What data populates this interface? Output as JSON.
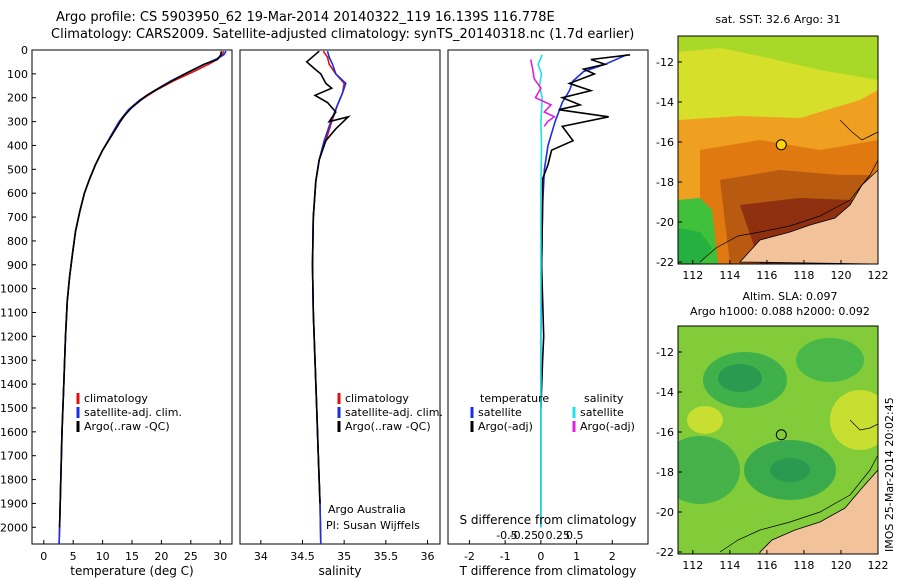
{
  "header": {
    "line1": "Argo profile: CS 5903950_62 19-Mar-2014 20140322_119 16.139S 116.778E",
    "line2": "Climatology: CARS2009. Satellite-adjusted climatology: synTS_20140318.nc (1.7d earlier)"
  },
  "stamp": "IMOS 25-Mar-2014 20:02:45",
  "colors": {
    "climatology": "#e01010",
    "satellite": "#1a2ee8",
    "argo": "#000000",
    "salinity_satellite": "#22e0e8",
    "salinity_argo": "#e020e0",
    "land": "#f2c29a"
  },
  "chart_data": [
    {
      "type": "line",
      "xlabel": "temperature (deg C)",
      "xlim": [
        -2,
        32
      ],
      "ylim": [
        2070,
        0
      ],
      "xticks": [
        0,
        5,
        10,
        15,
        20,
        25,
        30
      ],
      "yticks": [
        0,
        100,
        200,
        300,
        400,
        500,
        600,
        700,
        800,
        900,
        1000,
        1100,
        1200,
        1300,
        1400,
        1500,
        1600,
        1700,
        1800,
        1900,
        2000
      ],
      "legend": [
        "climatology",
        "satellite-adj. clim.",
        "Argo(..raw -QC)"
      ],
      "legend_location": "lower-center",
      "series": [
        {
          "name": "climatology",
          "color": "#e01010",
          "points": [
            [
              30.6,
              5
            ],
            [
              30.3,
              20
            ],
            [
              29.5,
              40
            ],
            [
              28,
              60
            ],
            [
              25.5,
              90
            ],
            [
              22,
              130
            ],
            [
              19,
              170
            ],
            [
              16.5,
              210
            ],
            [
              14.5,
              250
            ],
            [
              13,
              300
            ],
            [
              11.5,
              360
            ],
            [
              10,
              420
            ],
            [
              8.8,
              480
            ],
            [
              7.8,
              540
            ],
            [
              6.9,
              600
            ],
            [
              6.1,
              680
            ],
            [
              5.4,
              760
            ],
            [
              4.9,
              850
            ],
            [
              4.4,
              950
            ],
            [
              4,
              1050
            ],
            [
              3.7,
              1200
            ],
            [
              3.4,
              1400
            ],
            [
              3.1,
              1600
            ],
            [
              2.9,
              1800
            ],
            [
              2.7,
              2000
            ],
            [
              2.6,
              2070
            ]
          ]
        },
        {
          "name": "satellite-adj. clim.",
          "color": "#1a2ee8",
          "points": [
            [
              31,
              5
            ],
            [
              30.6,
              20
            ],
            [
              29.2,
              40
            ],
            [
              27.3,
              60
            ],
            [
              24.8,
              90
            ],
            [
              21.6,
              130
            ],
            [
              18.8,
              170
            ],
            [
              16.3,
              210
            ],
            [
              14.4,
              250
            ],
            [
              12.8,
              300
            ],
            [
              11.4,
              360
            ],
            [
              10,
              420
            ],
            [
              8.8,
              480
            ],
            [
              7.8,
              540
            ],
            [
              6.9,
              600
            ],
            [
              6.1,
              680
            ],
            [
              5.4,
              760
            ],
            [
              4.9,
              850
            ],
            [
              4.4,
              950
            ],
            [
              4,
              1050
            ],
            [
              3.7,
              1200
            ],
            [
              3.4,
              1400
            ],
            [
              3.1,
              1600
            ],
            [
              2.9,
              1800
            ],
            [
              2.7,
              2000
            ],
            [
              2.6,
              2070
            ]
          ]
        },
        {
          "name": "Argo(..raw -QC)",
          "color": "#000000",
          "points": [
            [
              30.2,
              5
            ],
            [
              30.1,
              20
            ],
            [
              29.5,
              40
            ],
            [
              27.2,
              60
            ],
            [
              24,
              100
            ],
            [
              21,
              140
            ],
            [
              17.5,
              190
            ],
            [
              15,
              240
            ],
            [
              13.5,
              280
            ],
            [
              12.5,
              320
            ],
            [
              11,
              380
            ],
            [
              10,
              420
            ],
            [
              8.8,
              480
            ],
            [
              7.8,
              540
            ],
            [
              6.9,
              600
            ],
            [
              6.1,
              680
            ],
            [
              5.4,
              760
            ],
            [
              4.9,
              850
            ],
            [
              4.4,
              950
            ],
            [
              4,
              1050
            ],
            [
              3.7,
              1200
            ],
            [
              3.4,
              1400
            ],
            [
              3.1,
              1600
            ],
            [
              2.9,
              1800
            ],
            [
              2.7,
              2000
            ]
          ]
        }
      ]
    },
    {
      "type": "line",
      "xlabel": "salinity",
      "xlim": [
        33.75,
        36.15
      ],
      "ylim": [
        2070,
        0
      ],
      "xticks": [
        34,
        34.5,
        35,
        35.5,
        36
      ],
      "legend": [
        "climatology",
        "satellite-adj. clim.",
        "Argo(..raw -QC)"
      ],
      "legend_location": "lower-right",
      "annotations": [
        "Argo Australia",
        "PI: Susan Wijffels"
      ],
      "series": [
        {
          "name": "climatology",
          "color": "#e01010",
          "points": [
            [
              34.75,
              5
            ],
            [
              34.8,
              30
            ],
            [
              34.82,
              60
            ],
            [
              34.9,
              100
            ],
            [
              35,
              140
            ],
            [
              34.98,
              180
            ],
            [
              34.92,
              230
            ],
            [
              34.85,
              300
            ],
            [
              34.78,
              380
            ],
            [
              34.7,
              460
            ],
            [
              34.66,
              550
            ],
            [
              34.63,
              700
            ],
            [
              34.62,
              900
            ],
            [
              34.63,
              1100
            ],
            [
              34.65,
              1300
            ],
            [
              34.67,
              1500
            ],
            [
              34.69,
              1700
            ],
            [
              34.71,
              1900
            ],
            [
              34.72,
              2070
            ]
          ]
        },
        {
          "name": "satellite-adj. clim.",
          "color": "#1a2ee8",
          "points": [
            [
              34.8,
              5
            ],
            [
              34.82,
              30
            ],
            [
              34.86,
              60
            ],
            [
              34.9,
              100
            ],
            [
              35.02,
              140
            ],
            [
              34.98,
              180
            ],
            [
              34.92,
              230
            ],
            [
              34.84,
              300
            ],
            [
              34.76,
              380
            ],
            [
              34.7,
              460
            ],
            [
              34.66,
              550
            ],
            [
              34.63,
              700
            ],
            [
              34.62,
              900
            ],
            [
              34.63,
              1100
            ],
            [
              34.65,
              1300
            ],
            [
              34.67,
              1500
            ],
            [
              34.69,
              1700
            ],
            [
              34.71,
              1900
            ],
            [
              34.72,
              2070
            ]
          ]
        },
        {
          "name": "Argo(..raw -QC)",
          "color": "#000000",
          "points": [
            [
              34.7,
              5
            ],
            [
              34.55,
              50
            ],
            [
              34.65,
              80
            ],
            [
              34.72,
              100
            ],
            [
              34.78,
              140
            ],
            [
              34.85,
              160
            ],
            [
              34.65,
              190
            ],
            [
              34.8,
              220
            ],
            [
              34.9,
              260
            ],
            [
              34.82,
              300
            ],
            [
              35.05,
              280
            ],
            [
              34.9,
              330
            ],
            [
              34.78,
              380
            ],
            [
              34.7,
              460
            ],
            [
              34.66,
              550
            ],
            [
              34.63,
              700
            ],
            [
              34.62,
              900
            ],
            [
              34.63,
              1100
            ],
            [
              34.65,
              1300
            ],
            [
              34.67,
              1500
            ],
            [
              34.69,
              1700
            ],
            [
              34.71,
              1900
            ]
          ]
        }
      ]
    },
    {
      "type": "line",
      "xlabel": "T difference from climatology",
      "xlabel_top": "S difference from climatology",
      "xlim": [
        -2.6,
        3
      ],
      "ylim": [
        2070,
        0
      ],
      "xticks": [
        -2,
        -1,
        0,
        1,
        2
      ],
      "top_xticks_values": [
        -0.5,
        -0.25,
        0,
        0.25,
        0.5
      ],
      "top_xtick_labels": [
        "-0.5",
        "-0.25",
        "0",
        "0.25",
        "0.5"
      ],
      "legend": [
        {
          "group": "temperature",
          "items": [
            "satellite",
            "Argo(-adj)"
          ]
        },
        {
          "group": "salinity",
          "items": [
            "satellite",
            "Argo(-adj)"
          ]
        }
      ],
      "series": [
        {
          "name": "satellite",
          "group": "temperature",
          "color": "#1a2ee8",
          "points": [
            [
              2.4,
              20
            ],
            [
              1.8,
              60
            ],
            [
              1.2,
              90
            ],
            [
              0.9,
              130
            ],
            [
              0.8,
              170
            ],
            [
              0.6,
              220
            ],
            [
              0.4,
              300
            ],
            [
              0.2,
              400
            ],
            [
              0.1,
              500
            ],
            [
              0.05,
              650
            ],
            [
              0.02,
              900
            ],
            [
              0,
              1200
            ],
            [
              0,
              1600
            ],
            [
              0,
              2000
            ]
          ]
        },
        {
          "name": "Argo(-adj)",
          "group": "temperature",
          "color": "#000000",
          "points": [
            [
              2.5,
              20
            ],
            [
              1.4,
              40
            ],
            [
              1.8,
              60
            ],
            [
              1.2,
              80
            ],
            [
              1.5,
              100
            ],
            [
              0.8,
              140
            ],
            [
              1.4,
              170
            ],
            [
              0.6,
              200
            ],
            [
              1.1,
              230
            ],
            [
              0.5,
              250
            ],
            [
              1.9,
              280
            ],
            [
              0.6,
              320
            ],
            [
              0.9,
              380
            ],
            [
              0.3,
              420
            ],
            [
              0.2,
              480
            ],
            [
              0.05,
              540
            ],
            [
              0.05,
              650
            ],
            [
              0.02,
              900
            ],
            [
              0.08,
              1200
            ],
            [
              0.05,
              1300
            ],
            [
              0,
              1500
            ]
          ]
        },
        {
          "name": "satellite",
          "group": "salinity",
          "color": "#22e0e8",
          "points": [
            [
              0.02,
              20
            ],
            [
              -0.04,
              60
            ],
            [
              0.01,
              100
            ],
            [
              -0.02,
              150
            ],
            [
              0.02,
              200
            ],
            [
              0,
              300
            ],
            [
              0.01,
              400
            ],
            [
              0,
              600
            ],
            [
              0,
              900
            ],
            [
              0,
              1200
            ],
            [
              0,
              1600
            ],
            [
              0,
              2000
            ]
          ]
        },
        {
          "name": "Argo(-adj)",
          "group": "salinity",
          "color": "#e020e0",
          "points": [
            [
              -0.15,
              40
            ],
            [
              -0.12,
              80
            ],
            [
              -0.1,
              120
            ],
            [
              0,
              160
            ],
            [
              -0.08,
              200
            ],
            [
              0.15,
              230
            ],
            [
              0.05,
              260
            ],
            [
              0.2,
              280
            ],
            [
              0.1,
              300
            ],
            [
              0.05,
              320
            ]
          ]
        }
      ]
    },
    {
      "type": "heatmap",
      "title": "sat. SST: 32.6 Argo: 31",
      "xlim": [
        111.2,
        122
      ],
      "ylim": [
        -22.1,
        -10.7
      ],
      "xticks": [
        112,
        114,
        116,
        118,
        120,
        122
      ],
      "yticks": [
        -12,
        -14,
        -16,
        -18,
        -20,
        -22
      ],
      "marker": {
        "lon": 116.778,
        "lat": -16.139
      }
    },
    {
      "type": "heatmap",
      "title": "Altim. SLA: 0.097",
      "subtitle": "Argo h1000: 0.088 h2000: 0.092",
      "xlim": [
        111.2,
        122
      ],
      "ylim": [
        -22.1,
        -10.7
      ],
      "xticks": [
        112,
        114,
        116,
        118,
        120,
        122
      ],
      "yticks": [
        -12,
        -14,
        -16,
        -18,
        -20,
        -22
      ],
      "marker": {
        "lon": 116.778,
        "lat": -16.139
      }
    }
  ]
}
